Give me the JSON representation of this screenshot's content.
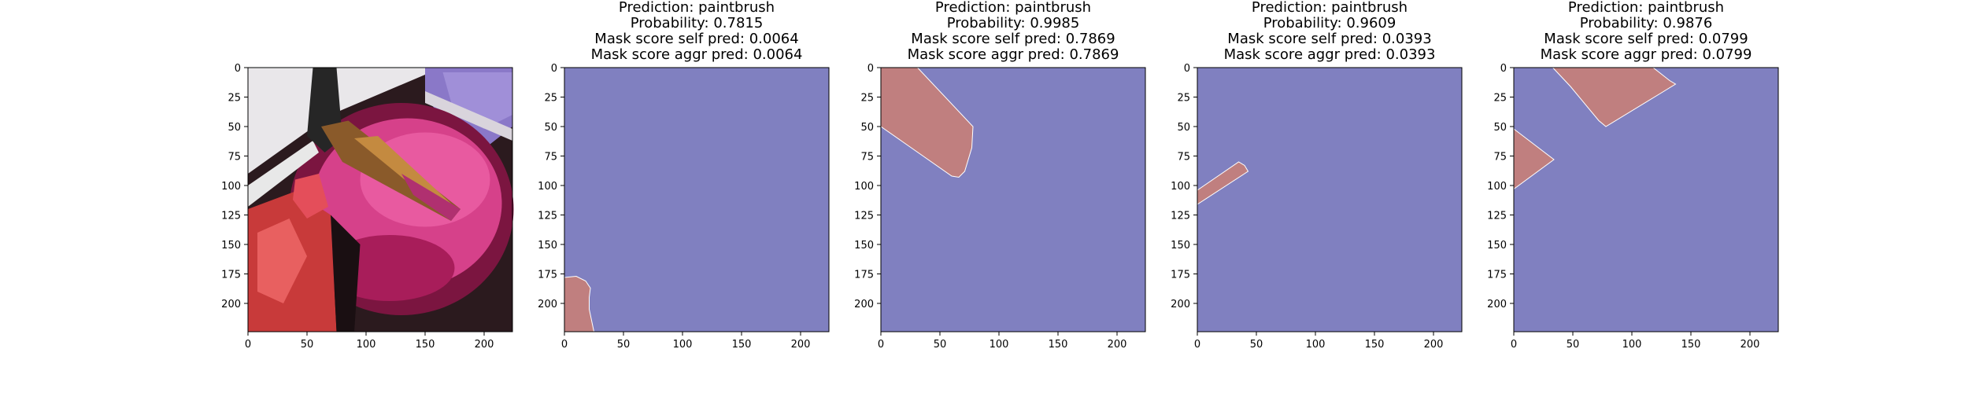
{
  "figure": {
    "colors": {
      "background_mask": "#8080c0",
      "segment_mask": "#c07f7f",
      "axes": "#000000"
    }
  },
  "chart_data": [
    {
      "type": "image",
      "image": "photo of a paintbrush dipped in magenta watercolor paint pans",
      "xlim": [
        0,
        224
      ],
      "ylim": [
        224,
        0
      ],
      "xticks": [
        0,
        50,
        100,
        150,
        200
      ],
      "yticks": [
        0,
        25,
        50,
        75,
        100,
        125,
        150,
        175,
        200
      ],
      "title_lines": []
    },
    {
      "type": "mask",
      "xlim": [
        0,
        224
      ],
      "ylim": [
        224,
        0
      ],
      "xticks": [
        0,
        50,
        100,
        150,
        200
      ],
      "yticks": [
        0,
        25,
        50,
        75,
        100,
        125,
        150,
        175,
        200
      ],
      "title_lines": [
        "Prediction: paintbrush",
        "Probability: 0.7815",
        "Mask score self pred: 0.0064",
        "Mask score aggr pred: 0.0064"
      ],
      "prediction": "paintbrush",
      "probability": 0.7815,
      "mask_score_self_pred": 0.0064,
      "mask_score_aggr_pred": 0.0064,
      "regions": [
        [
          [
            0,
            178
          ],
          [
            10,
            177
          ],
          [
            18,
            181
          ],
          [
            22,
            187
          ],
          [
            21,
            195
          ],
          [
            21,
            205
          ],
          [
            25,
            224
          ],
          [
            0,
            224
          ]
        ]
      ]
    },
    {
      "type": "mask",
      "xlim": [
        0,
        224
      ],
      "ylim": [
        224,
        0
      ],
      "xticks": [
        0,
        50,
        100,
        150,
        200
      ],
      "yticks": [
        0,
        25,
        50,
        75,
        100,
        125,
        150,
        175,
        200
      ],
      "title_lines": [
        "Prediction: paintbrush",
        "Probability: 0.9985",
        "Mask score self pred: 0.7869",
        "Mask score aggr pred: 0.7869"
      ],
      "prediction": "paintbrush",
      "probability": 0.9985,
      "mask_score_self_pred": 0.7869,
      "mask_score_aggr_pred": 0.7869,
      "regions": [
        [
          [
            0,
            0
          ],
          [
            31,
            0
          ],
          [
            78,
            50
          ],
          [
            77,
            68
          ],
          [
            71,
            88
          ],
          [
            66,
            93
          ],
          [
            60,
            92
          ],
          [
            0,
            50
          ]
        ]
      ]
    },
    {
      "type": "mask",
      "xlim": [
        0,
        224
      ],
      "ylim": [
        224,
        0
      ],
      "xticks": [
        0,
        50,
        100,
        150,
        200
      ],
      "yticks": [
        0,
        25,
        50,
        75,
        100,
        125,
        150,
        175,
        200
      ],
      "title_lines": [
        "Prediction: paintbrush",
        "Probability: 0.9609",
        "Mask score self pred: 0.0393",
        "Mask score aggr pred: 0.0393"
      ],
      "prediction": "paintbrush",
      "probability": 0.9609,
      "mask_score_self_pred": 0.0393,
      "mask_score_aggr_pred": 0.0393,
      "regions": [
        [
          [
            0,
            104
          ],
          [
            35,
            80
          ],
          [
            40,
            83
          ],
          [
            43,
            88
          ],
          [
            0,
            116
          ]
        ]
      ]
    },
    {
      "type": "mask",
      "xlim": [
        0,
        224
      ],
      "ylim": [
        224,
        0
      ],
      "xticks": [
        0,
        50,
        100,
        150,
        200
      ],
      "yticks": [
        0,
        25,
        50,
        75,
        100,
        125,
        150,
        175,
        200
      ],
      "title_lines": [
        "Prediction: paintbrush",
        "Probability: 0.9876",
        "Mask score self pred: 0.0799",
        "Mask score aggr pred: 0.0799"
      ],
      "prediction": "paintbrush",
      "probability": 0.9876,
      "mask_score_self_pred": 0.0799,
      "mask_score_aggr_pred": 0.0799,
      "regions": [
        [
          [
            33,
            0
          ],
          [
            118,
            0
          ],
          [
            132,
            11
          ],
          [
            137,
            14
          ],
          [
            124,
            22
          ],
          [
            78,
            50
          ],
          [
            72,
            45
          ],
          [
            48,
            16
          ]
        ],
        [
          [
            0,
            52
          ],
          [
            34,
            78
          ],
          [
            0,
            103
          ]
        ]
      ]
    }
  ]
}
